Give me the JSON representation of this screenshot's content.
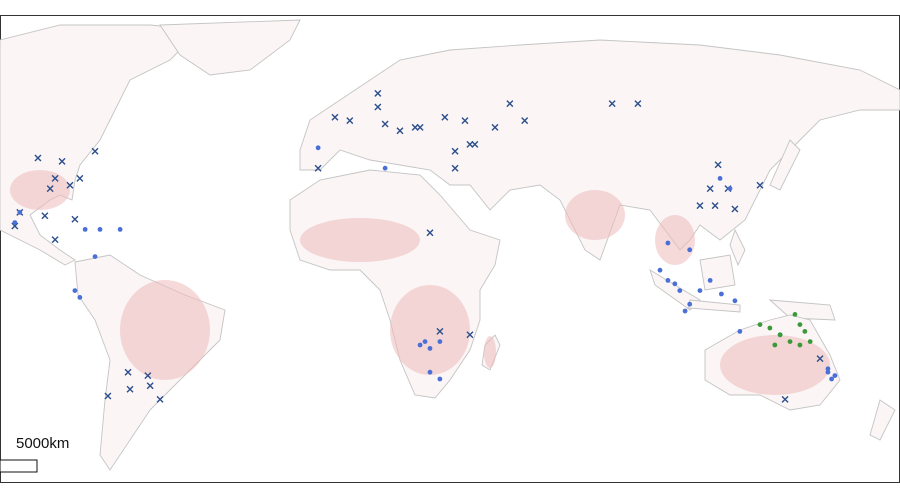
{
  "scale_label": "5000km",
  "markers": [
    {
      "shape": "cross",
      "color": "#2b4f8c",
      "lon": [
        -89.5,
        -82.2,
        -72.2,
        -84.3,
        -79.8,
        -85.8,
        -76.8,
        -95,
        -87.4,
        -96.5,
        -78.3,
        -84.3,
        -62.2,
        -56.2,
        -61.6,
        -55.5,
        -68.3,
        -52.5,
        13.5,
        13.5,
        53.5,
        33.8,
        20.2,
        26.3,
        39.9,
        49,
        58,
        24.8,
        36.9,
        41.4,
        42.9,
        36.9,
        0.5,
        -4.6,
        5,
        84.5,
        92.3,
        15.7,
        116.6,
        119.6,
        114.2,
        121.7,
        129.3,
        111.1,
        115.7,
        136.9,
        147.5,
        29.3,
        41.4,
        32.3
      ],
      "lat": [
        35,
        34,
        37,
        29,
        27,
        26,
        29,
        19,
        18,
        15,
        17,
        11,
        -28,
        -29,
        -33,
        -32,
        -35,
        -36,
        54,
        50,
        51,
        47,
        43,
        44,
        46,
        44,
        46,
        44,
        37,
        39,
        39,
        32,
        47,
        32,
        46,
        51,
        51,
        45,
        33,
        26,
        26,
        20,
        27,
        21,
        21,
        -36,
        -24,
        13,
        -17,
        -16
      ]
    },
    {
      "shape": "dot",
      "color": "#4a6fd6",
      "lon": [
        -95,
        -96.5,
        -75.2,
        -72.2,
        -78.3,
        -76.8,
        -70.7,
        -64.6,
        -4.6,
        15.7,
        27.8,
        26.3,
        32.3,
        29.3,
        29.3,
        32.3,
        99,
        101.4,
        103.5,
        105,
        108,
        111.1,
        114.2,
        117.6,
        121.7,
        106.6,
        101.4,
        108,
        123.2,
        135.4,
        149.9,
        151,
        149.9,
        152,
        117.2,
        120.2
      ],
      "lat": [
        19,
        16,
        14,
        6,
        -4,
        -6,
        14,
        14,
        38,
        32,
        -19,
        -20,
        -19,
        -21,
        -28,
        -30,
        2,
        -1,
        -2,
        -4,
        -8,
        -4,
        -1,
        -5,
        -7,
        -10,
        10,
        8,
        -16,
        -17,
        -28,
        -30,
        -27,
        -29,
        29,
        26
      ]
    },
    {
      "shape": "dot",
      "color": "#3a9a3a",
      "lon": [
        139.9,
        141.4,
        138.4,
        135.4,
        132.3,
        129.3,
        141.4,
        144.5,
        142.9,
        133.8
      ],
      "lat": [
        -11,
        -14,
        -19,
        -17,
        -15,
        -14,
        -20,
        -19,
        -16,
        -20
      ]
    }
  ]
}
